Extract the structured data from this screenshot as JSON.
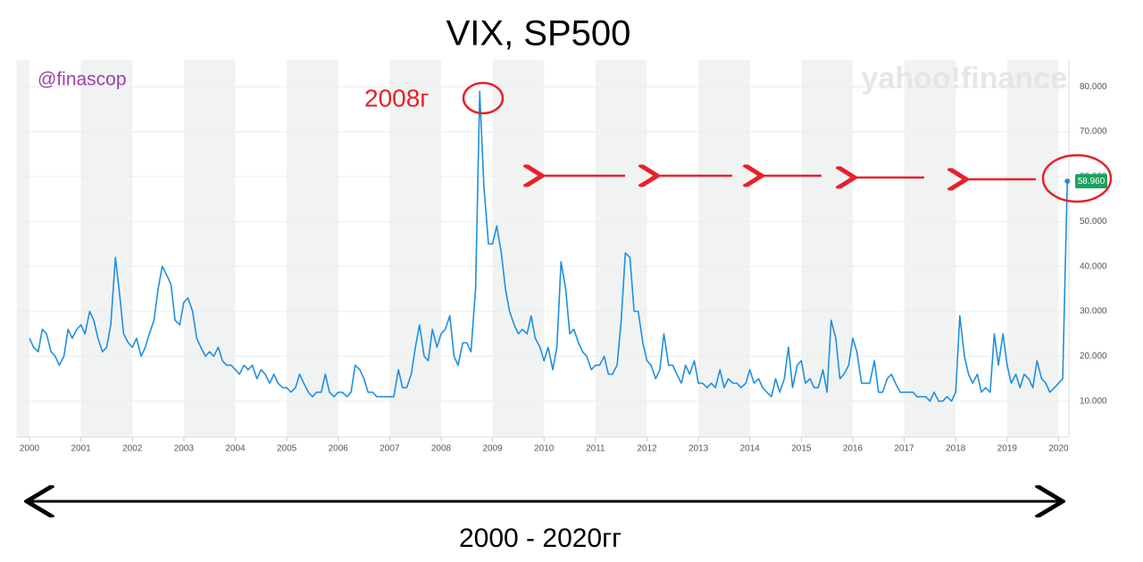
{
  "chart_data": {
    "type": "line",
    "title": "VIX, SP500",
    "annotations": {
      "watermark": "@finascop",
      "logo": "yahoo!finance",
      "peak_note": "2008г",
      "period_note": "2000 - 2020гг"
    },
    "xlim": [
      1999.75,
      2020.2
    ],
    "ylim": [
      2,
      86
    ],
    "xticks": [
      2000,
      2001,
      2002,
      2003,
      2004,
      2005,
      2006,
      2007,
      2008,
      2009,
      2010,
      2011,
      2012,
      2013,
      2014,
      2015,
      2016,
      2017,
      2018,
      2019,
      2020
    ],
    "yticks": [
      {
        "value": 10,
        "label": "10.000"
      },
      {
        "value": 20,
        "label": "20.000"
      },
      {
        "value": 30,
        "label": "30.000"
      },
      {
        "value": 40,
        "label": "40.000"
      },
      {
        "value": 50,
        "label": "50.000"
      },
      {
        "value": 60,
        "label": "60.000"
      },
      {
        "value": 70,
        "label": "70.000"
      },
      {
        "value": 80,
        "label": "80.000"
      }
    ],
    "grid": true,
    "last_point": {
      "x": 2020.17,
      "value": 58.96,
      "label": "58.960",
      "color": "#1aa260"
    },
    "series": [
      {
        "name": "VIX",
        "color": "#1f8fe0",
        "x": [
          2000,
          2000.08,
          2000.17,
          2000.25,
          2000.33,
          2000.42,
          2000.5,
          2000.58,
          2000.67,
          2000.75,
          2000.83,
          2000.92,
          2001,
          2001.08,
          2001.17,
          2001.25,
          2001.33,
          2001.42,
          2001.5,
          2001.58,
          2001.67,
          2001.75,
          2001.83,
          2001.92,
          2002,
          2002.08,
          2002.17,
          2002.25,
          2002.33,
          2002.42,
          2002.5,
          2002.58,
          2002.67,
          2002.75,
          2002.83,
          2002.92,
          2003,
          2003.08,
          2003.17,
          2003.25,
          2003.33,
          2003.42,
          2003.5,
          2003.58,
          2003.67,
          2003.75,
          2003.83,
          2003.92,
          2004,
          2004.08,
          2004.17,
          2004.25,
          2004.33,
          2004.42,
          2004.5,
          2004.58,
          2004.67,
          2004.75,
          2004.83,
          2004.92,
          2005,
          2005.08,
          2005.17,
          2005.25,
          2005.33,
          2005.42,
          2005.5,
          2005.58,
          2005.67,
          2005.75,
          2005.83,
          2005.92,
          2006,
          2006.08,
          2006.17,
          2006.25,
          2006.33,
          2006.42,
          2006.5,
          2006.58,
          2006.67,
          2006.75,
          2006.83,
          2006.92,
          2007,
          2007.08,
          2007.17,
          2007.25,
          2007.33,
          2007.42,
          2007.5,
          2007.58,
          2007.67,
          2007.75,
          2007.83,
          2007.92,
          2008,
          2008.08,
          2008.17,
          2008.25,
          2008.33,
          2008.42,
          2008.5,
          2008.58,
          2008.67,
          2008.75,
          2008.83,
          2008.92,
          2009,
          2009.08,
          2009.17,
          2009.25,
          2009.33,
          2009.42,
          2009.5,
          2009.58,
          2009.67,
          2009.75,
          2009.83,
          2009.92,
          2010,
          2010.08,
          2010.17,
          2010.25,
          2010.33,
          2010.42,
          2010.5,
          2010.58,
          2010.67,
          2010.75,
          2010.83,
          2010.92,
          2011,
          2011.08,
          2011.17,
          2011.25,
          2011.33,
          2011.42,
          2011.5,
          2011.58,
          2011.67,
          2011.75,
          2011.83,
          2011.92,
          2012,
          2012.08,
          2012.17,
          2012.25,
          2012.33,
          2012.42,
          2012.5,
          2012.58,
          2012.67,
          2012.75,
          2012.83,
          2012.92,
          2013,
          2013.08,
          2013.17,
          2013.25,
          2013.33,
          2013.42,
          2013.5,
          2013.58,
          2013.67,
          2013.75,
          2013.83,
          2013.92,
          2014,
          2014.08,
          2014.17,
          2014.25,
          2014.33,
          2014.42,
          2014.5,
          2014.58,
          2014.67,
          2014.75,
          2014.83,
          2014.92,
          2015,
          2015.08,
          2015.17,
          2015.25,
          2015.33,
          2015.42,
          2015.5,
          2015.58,
          2015.67,
          2015.75,
          2015.83,
          2015.92,
          2016,
          2016.08,
          2016.17,
          2016.25,
          2016.33,
          2016.42,
          2016.5,
          2016.58,
          2016.67,
          2016.75,
          2016.83,
          2016.92,
          2017,
          2017.08,
          2017.17,
          2017.25,
          2017.33,
          2017.42,
          2017.5,
          2017.58,
          2017.67,
          2017.75,
          2017.83,
          2017.92,
          2018,
          2018.08,
          2018.17,
          2018.25,
          2018.33,
          2018.42,
          2018.5,
          2018.58,
          2018.67,
          2018.75,
          2018.83,
          2018.92,
          2019,
          2019.08,
          2019.17,
          2019.25,
          2019.33,
          2019.42,
          2019.5,
          2019.58,
          2019.67,
          2019.75,
          2019.83,
          2019.92,
          2020,
          2020.08,
          2020.13,
          2020.17
        ],
        "values": [
          24,
          22,
          21,
          26,
          25,
          21,
          20,
          18,
          20,
          26,
          24,
          26,
          27,
          25,
          30,
          28,
          24,
          21,
          22,
          27,
          42,
          34,
          25,
          23,
          22,
          24,
          20,
          22,
          25,
          28,
          35,
          40,
          38,
          36,
          28,
          27,
          32,
          33,
          30,
          24,
          22,
          20,
          21,
          20,
          22,
          19,
          18,
          18,
          17,
          16,
          18,
          17,
          18,
          15,
          17,
          16,
          14,
          16,
          14,
          13,
          13,
          12,
          13,
          16,
          14,
          12,
          11,
          12,
          12,
          16,
          12,
          11,
          12,
          12,
          11,
          12,
          18,
          17,
          15,
          12,
          12,
          11,
          11,
          11,
          11,
          11,
          17,
          13,
          13,
          16,
          22,
          27,
          20,
          19,
          26,
          22,
          25,
          26,
          29,
          20,
          18,
          23,
          23,
          21,
          35,
          79,
          58,
          45,
          45,
          49,
          43,
          35,
          30,
          27,
          25,
          26,
          25,
          29,
          24,
          22,
          19,
          22,
          17,
          22,
          41,
          35,
          25,
          26,
          23,
          21,
          20,
          17,
          18,
          18,
          20,
          16,
          16,
          18,
          28,
          43,
          42,
          30,
          30,
          23,
          19,
          18,
          15,
          17,
          25,
          18,
          18,
          16,
          14,
          18,
          16,
          19,
          14,
          14,
          13,
          14,
          13,
          17,
          13,
          15,
          14,
          14,
          13,
          14,
          17,
          14,
          15,
          13,
          12,
          11,
          15,
          12,
          15,
          22,
          13,
          18,
          19,
          14,
          15,
          13,
          13,
          17,
          12,
          28,
          24,
          15,
          16,
          18,
          24,
          21,
          14,
          14,
          14,
          19,
          12,
          12,
          15,
          16,
          14,
          12,
          12,
          12,
          12,
          11,
          11,
          11,
          10,
          12,
          10,
          10,
          11,
          10,
          12,
          29,
          20,
          16,
          14,
          16,
          12,
          13,
          12,
          25,
          18,
          25,
          18,
          14,
          16,
          13,
          16,
          15,
          13,
          19,
          15,
          14,
          12,
          13,
          14,
          15,
          40,
          58.96
        ]
      }
    ]
  }
}
